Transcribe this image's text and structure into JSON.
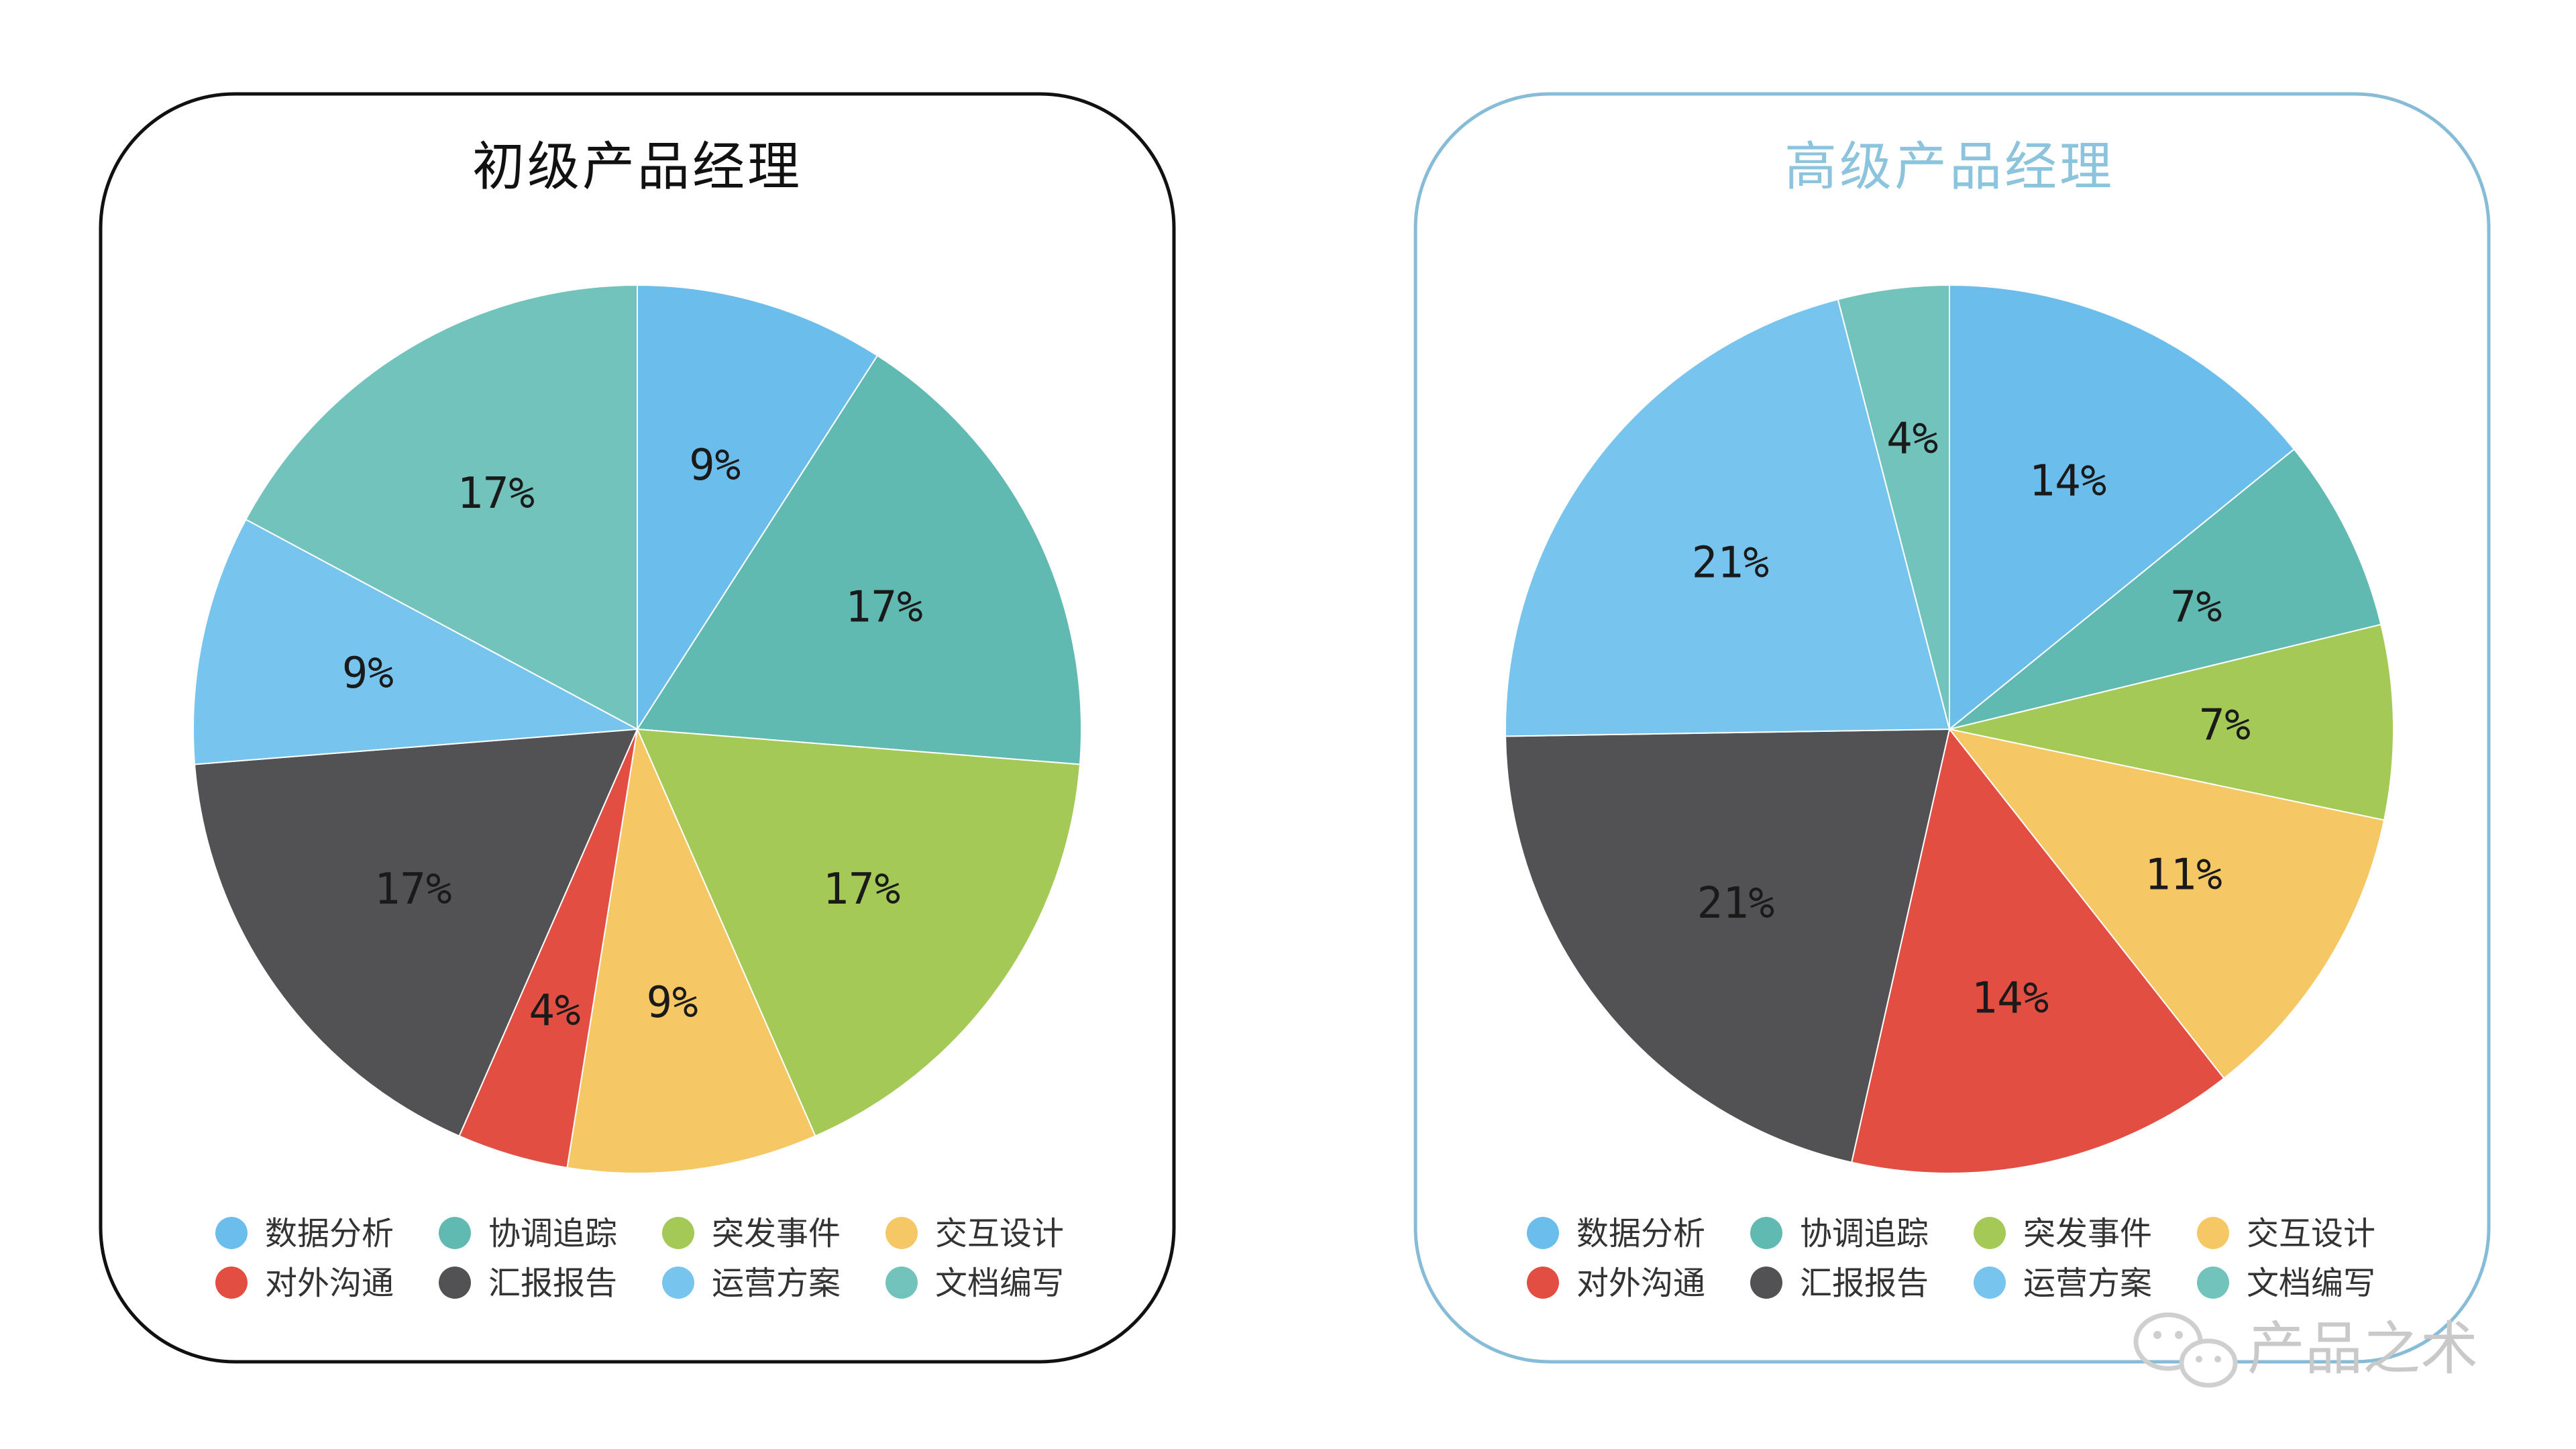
{
  "colors": {
    "frame_left": "#111111",
    "frame_right": "#86bcd8",
    "title_left": "#111111",
    "title_right": "#8cc3dd",
    "slice_stroke": "#ffffff"
  },
  "categories": [
    "数据分析",
    "协调追踪",
    "突发事件",
    "交互设计",
    "对外沟通",
    "汇报报告",
    "运营方案",
    "文档编写"
  ],
  "category_colors": [
    "#6bbdec",
    "#61bab2",
    "#a5c957",
    "#f5c765",
    "#e34e42",
    "#525154",
    "#77c5ef",
    "#71c3bb"
  ],
  "chart_data": [
    {
      "type": "pie",
      "title": "初级产品经理",
      "slices": [
        {
          "category": "数据分析",
          "value": 9,
          "label": "9%"
        },
        {
          "category": "协调追踪",
          "value": 17,
          "label": "17%"
        },
        {
          "category": "突发事件",
          "value": 17,
          "label": "17%"
        },
        {
          "category": "交互设计",
          "value": 9,
          "label": "9%"
        },
        {
          "category": "对外沟通",
          "value": 4,
          "label": "4%"
        },
        {
          "category": "汇报报告",
          "value": 17,
          "label": "17%"
        },
        {
          "category": "运营方案",
          "value": 9,
          "label": "9%"
        },
        {
          "category": "文档编写",
          "value": 17,
          "label": "17%"
        }
      ],
      "legend_position": "bottom"
    },
    {
      "type": "pie",
      "title": "高级产品经理",
      "slices": [
        {
          "category": "数据分析",
          "value": 14,
          "label": "14%"
        },
        {
          "category": "协调追踪",
          "value": 7,
          "label": "7%"
        },
        {
          "category": "突发事件",
          "value": 7,
          "label": "7%"
        },
        {
          "category": "交互设计",
          "value": 11,
          "label": "11%"
        },
        {
          "category": "对外沟通",
          "value": 14,
          "label": "14%"
        },
        {
          "category": "汇报报告",
          "value": 21,
          "label": "21%"
        },
        {
          "category": "运营方案",
          "value": 21,
          "label": "21%"
        },
        {
          "category": "文档编写",
          "value": 4,
          "label": "4%"
        }
      ],
      "legend_position": "bottom"
    }
  ],
  "watermark": {
    "text": "产品之术",
    "icon": "wechat-icon"
  }
}
